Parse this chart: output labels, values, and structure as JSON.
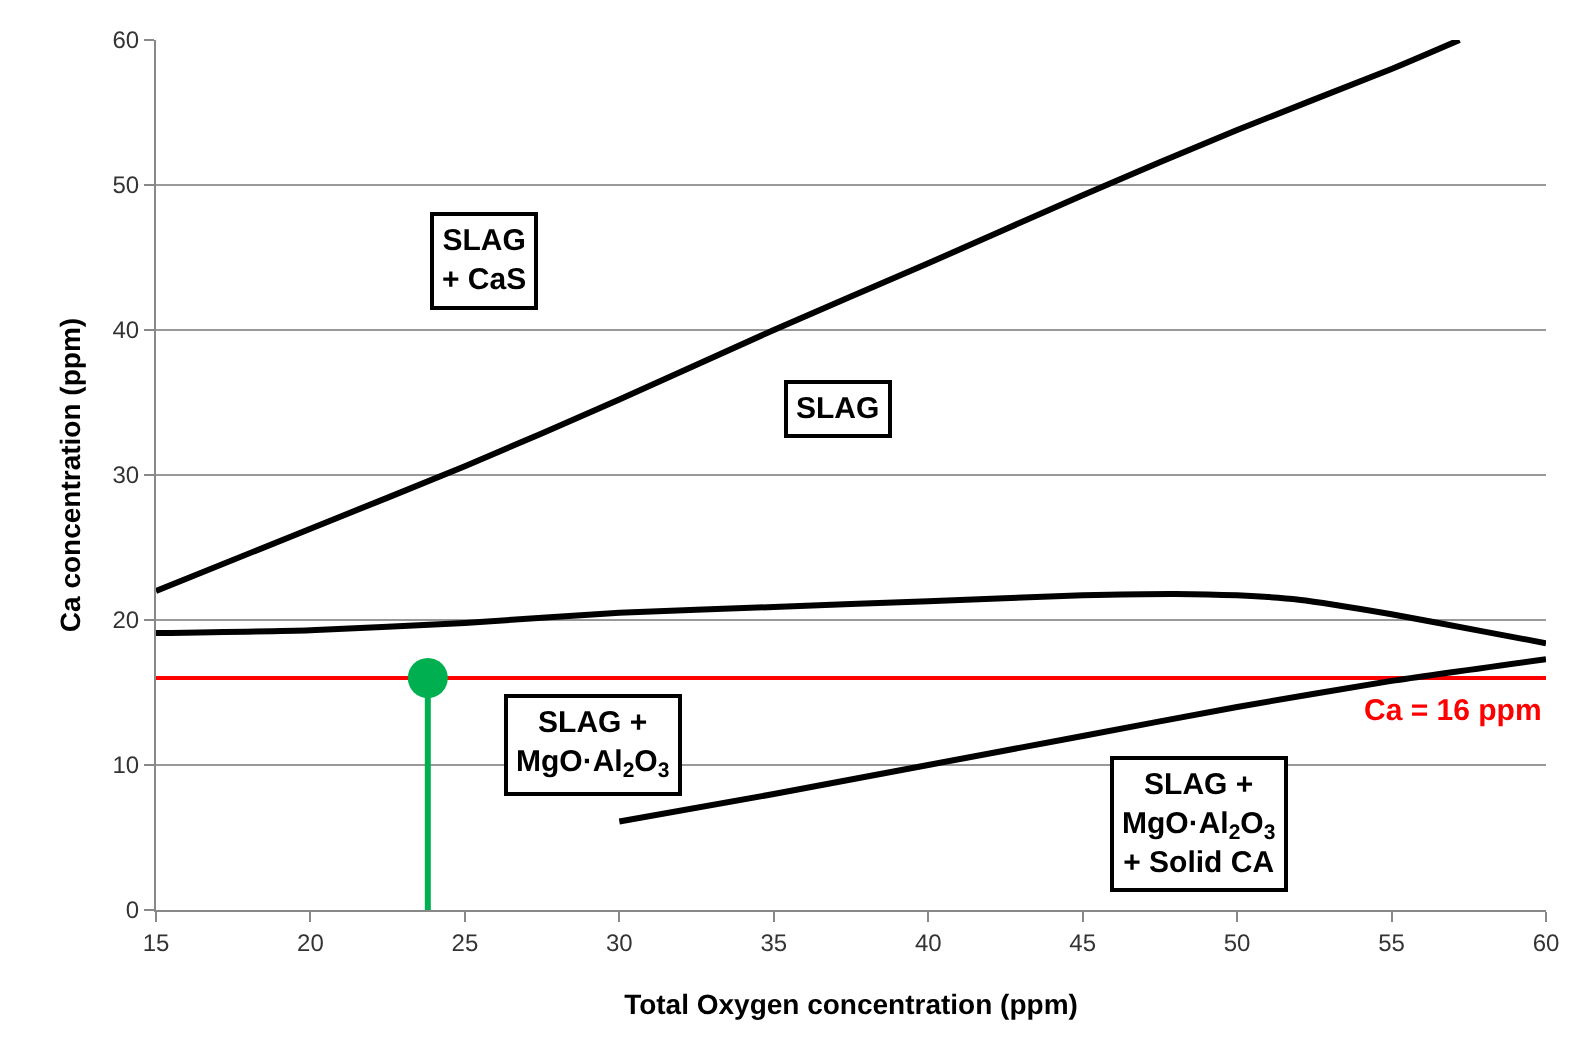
{
  "chart_data": {
    "type": "line",
    "xlabel": "Total Oxygen concentration (ppm)",
    "ylabel": "Ca concentration (ppm)",
    "xlim": [
      15,
      60
    ],
    "xticks": [
      15,
      20,
      25,
      30,
      35,
      40,
      45,
      50,
      55,
      60
    ],
    "ylim": [
      0,
      60
    ],
    "yticks": [
      0,
      10,
      20,
      30,
      40,
      50,
      60
    ],
    "grid": "y",
    "marker": "none",
    "line_style": "solid",
    "series": [
      {
        "color": "#000000",
        "x": [
          15,
          20,
          25,
          30,
          35,
          40,
          45,
          50,
          55,
          57.2
        ],
        "values": [
          22,
          26.3,
          30.6,
          35.2,
          40,
          44.6,
          49.3,
          53.8,
          58,
          60
        ]
      },
      {
        "color": "#000000",
        "x": [
          15,
          20,
          25,
          30,
          35,
          40,
          45,
          48,
          50,
          52,
          55,
          58,
          60
        ],
        "values": [
          19.1,
          19.3,
          19.8,
          20.5,
          20.9,
          21.3,
          21.7,
          21.8,
          21.7,
          21.4,
          20.4,
          19.2,
          18.4
        ]
      },
      {
        "color": "#000000",
        "x": [
          30,
          35,
          40,
          45,
          50,
          55,
          60
        ],
        "values": [
          6.1,
          8,
          10,
          12,
          14,
          15.8,
          17.3
        ]
      },
      {
        "color": "#00b050",
        "x": [
          23.8,
          23.8
        ],
        "values": [
          0,
          16
        ]
      },
      {
        "type": "scatter",
        "marker": "circle",
        "color": "#00b050",
        "x": [
          23.8
        ],
        "values": [
          16
        ]
      }
    ],
    "ref_lines": [
      {
        "axis": "y",
        "value": 16,
        "label": "Ca = 16 ppm",
        "color": "#ff0000"
      }
    ],
    "annotations": [
      "SLAG\n+ CaS",
      "SLAG",
      "SLAG +\nMgO·Al$_{2}$O$_{3}$",
      "SLAG +\nMgO·Al$_{2}$O$_{3}$\n+ Solid CA"
    ]
  }
}
